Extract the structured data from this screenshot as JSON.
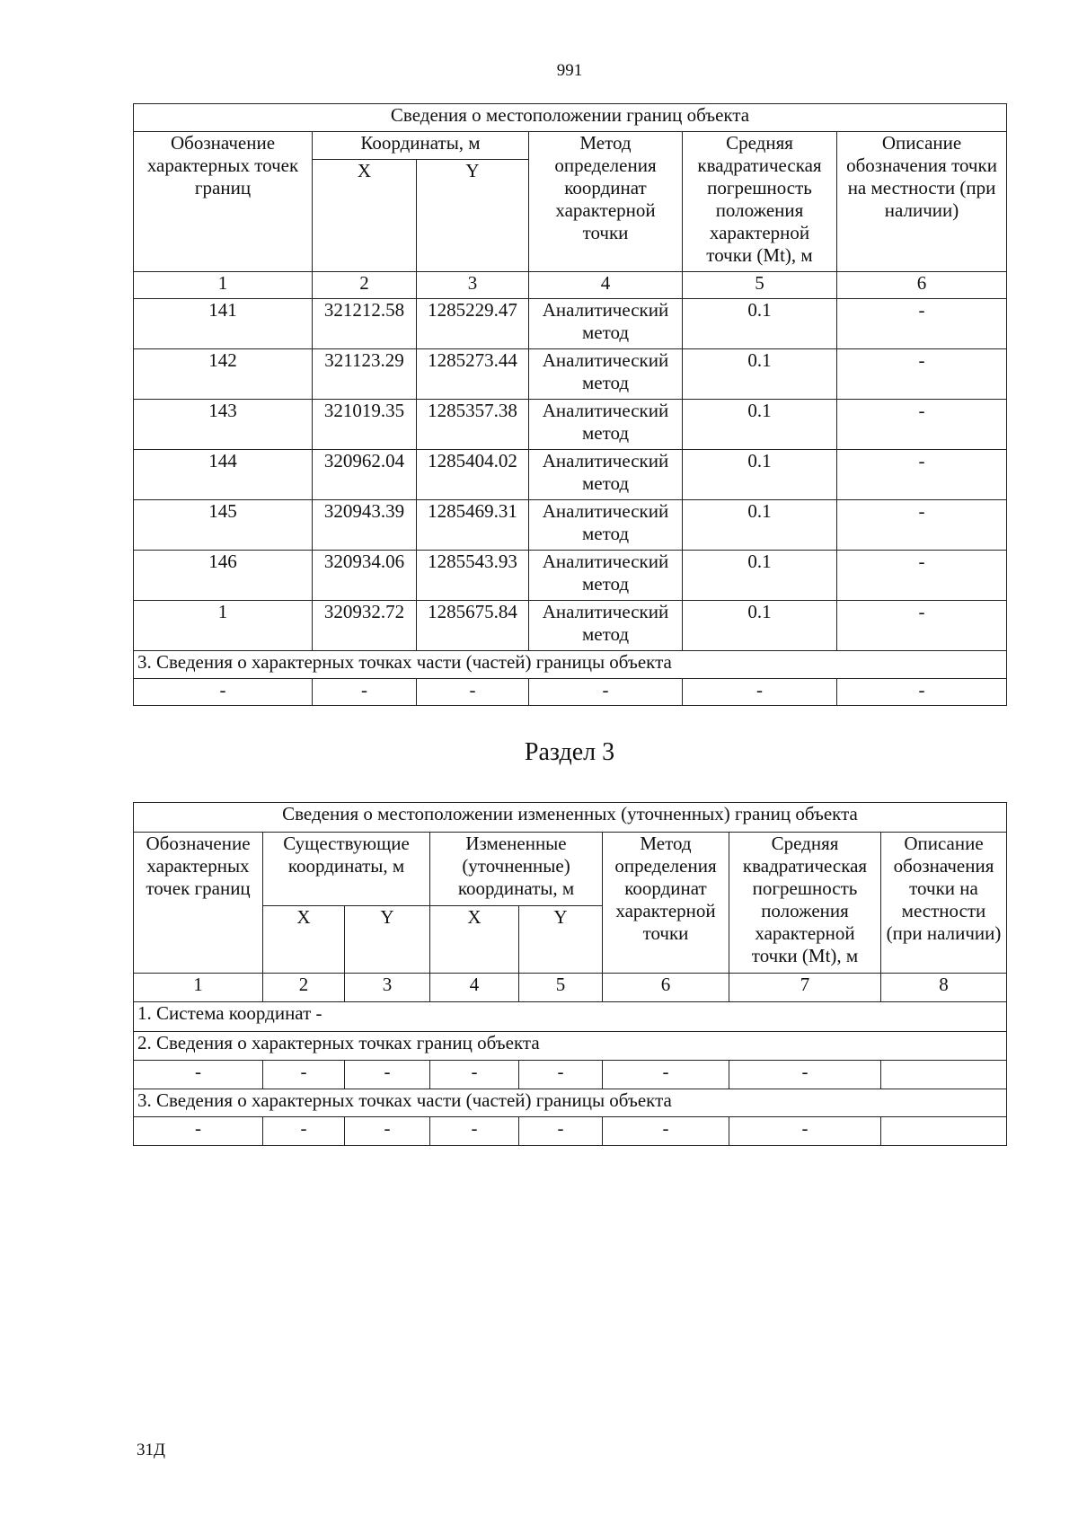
{
  "page_number": "991",
  "table1": {
    "title": "Сведения о местоположении границ объекта",
    "headers": {
      "point": "Обозначение характерных точек границ",
      "coords": "Координаты, м",
      "x": "X",
      "y": "Y",
      "method": "Метод определения координат характерной точки",
      "error": "Средняя квадратическая погрешность положения характерной точки (Mt), м",
      "desc": "Описание обозначения точки на местности (при наличии)"
    },
    "col_numbers": [
      "1",
      "2",
      "3",
      "4",
      "5",
      "6"
    ],
    "rows": [
      [
        "141",
        "321212.58",
        "1285229.47",
        "Аналитический метод",
        "0.1",
        "-"
      ],
      [
        "142",
        "321123.29",
        "1285273.44",
        "Аналитический метод",
        "0.1",
        "-"
      ],
      [
        "143",
        "321019.35",
        "1285357.38",
        "Аналитический метод",
        "0.1",
        "-"
      ],
      [
        "144",
        "320962.04",
        "1285404.02",
        "Аналитический метод",
        "0.1",
        "-"
      ],
      [
        "145",
        "320943.39",
        "1285469.31",
        "Аналитический метод",
        "0.1",
        "-"
      ],
      [
        "146",
        "320934.06",
        "1285543.93",
        "Аналитический метод",
        "0.1",
        "-"
      ],
      [
        "1",
        "320932.72",
        "1285675.84",
        "Аналитический метод",
        "0.1",
        "-"
      ]
    ],
    "parts_title": "3. Сведения о характерных точках части (частей) границы объекта",
    "parts_row": [
      "-",
      "-",
      "-",
      "-",
      "-",
      "-"
    ]
  },
  "section_title": "Раздел 3",
  "table2": {
    "title": "Сведения о местоположении измененных (уточненных) границ объекта",
    "headers": {
      "point": "Обозначение характерных точек границ",
      "existing": "Существующие координаты, м",
      "changed": "Измененные (уточненные) координаты, м",
      "x1": "X",
      "y1": "Y",
      "x2": "X",
      "y2": "Y",
      "method": "Метод определения координат характерной точки",
      "error": "Средняя квадратическая погрешность положения характерной точки (Mt), м",
      "desc": "Описание обозначения точки на местности (при наличии)"
    },
    "col_numbers": [
      "1",
      "2",
      "3",
      "4",
      "5",
      "6",
      "7",
      "8"
    ],
    "coord_system": "1. Система координат -",
    "points_title": "2. Сведения о характерных точках границ объекта",
    "points_row": [
      "-",
      "-",
      "-",
      "-",
      "-",
      "-",
      "-",
      ""
    ],
    "parts_title": "3. Сведения о характерных точках части (частей) границы объекта",
    "parts_row": [
      "-",
      "-",
      "-",
      "-",
      "-",
      "-",
      "-",
      ""
    ]
  },
  "footer": "31Д"
}
